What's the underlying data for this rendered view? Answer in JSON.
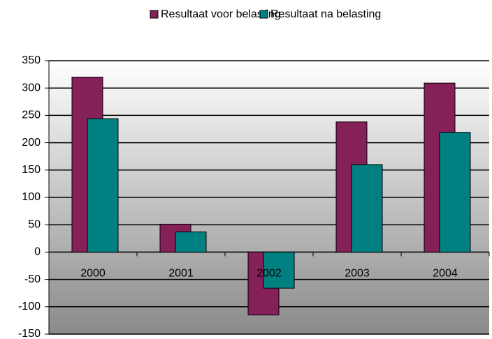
{
  "chart_data": {
    "type": "bar",
    "categories": [
      "2000",
      "2001",
      "2002",
      "2003",
      "2004"
    ],
    "series": [
      {
        "name": "Resultaat voor belasting",
        "color": "#862058",
        "values": [
          320,
          51,
          -115,
          238,
          309
        ]
      },
      {
        "name": "Resultaat na belasting",
        "color": "#008080",
        "values": [
          244,
          37,
          -66,
          160,
          219
        ]
      }
    ],
    "ylim": [
      -150,
      350
    ],
    "yticks": [
      -150,
      -100,
      -50,
      0,
      50,
      100,
      150,
      200,
      250,
      300,
      350
    ],
    "grid": true,
    "legend": "top"
  }
}
